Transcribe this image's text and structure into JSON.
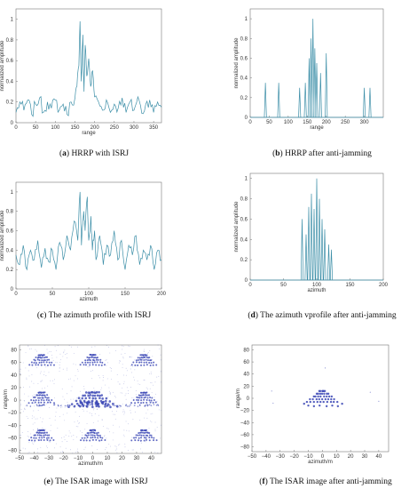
{
  "chart_data": [
    {
      "id": "a",
      "type": "line",
      "caption": {
        "label": "a",
        "text": " HRRP with ISRJ"
      },
      "xlabel": "range",
      "ylabel": "normalized amplitude",
      "xlim": [
        0,
        370
      ],
      "ylim": [
        0,
        1.1
      ],
      "xticks": [
        0,
        50,
        100,
        150,
        200,
        250,
        300,
        350
      ],
      "yticks": [
        0,
        0.2,
        0.4,
        0.6,
        0.8,
        1
      ],
      "color": "#3d8fa8",
      "series": [
        {
          "x": [
            0,
            10,
            20,
            30,
            40,
            50,
            60,
            70,
            80,
            90,
            100,
            110,
            120,
            130,
            140,
            150,
            155,
            160,
            163,
            166,
            170,
            173,
            176,
            180,
            185,
            190,
            195,
            200,
            210,
            220,
            230,
            240,
            250,
            260,
            270,
            280,
            290,
            300,
            310,
            320,
            330,
            340,
            350,
            360,
            370
          ],
          "y": [
            0.1,
            0.2,
            0.12,
            0.22,
            0.08,
            0.18,
            0.24,
            0.1,
            0.2,
            0.14,
            0.22,
            0.12,
            0.18,
            0.08,
            0.2,
            0.24,
            0.35,
            0.55,
            0.98,
            0.4,
            0.85,
            0.3,
            0.75,
            0.45,
            0.62,
            0.35,
            0.5,
            0.25,
            0.2,
            0.12,
            0.22,
            0.1,
            0.18,
            0.14,
            0.24,
            0.1,
            0.2,
            0.12,
            0.25,
            0.09,
            0.18,
            0.22,
            0.1,
            0.2,
            0.15
          ]
        }
      ]
    },
    {
      "id": "b",
      "type": "line",
      "caption": {
        "label": "b",
        "text": " HRRP after anti-jamming"
      },
      "xlabel": "range",
      "ylabel": "normalized amplitude",
      "xlim": [
        0,
        350
      ],
      "ylim": [
        0,
        1.1
      ],
      "xticks": [
        0,
        50,
        100,
        150,
        200,
        250,
        300
      ],
      "yticks": [
        0,
        0.2,
        0.4,
        0.6,
        0.8,
        1
      ],
      "color": "#3d8fa8",
      "spikes": [
        [
          40,
          0.35
        ],
        [
          75,
          0.35
        ],
        [
          130,
          0.3
        ],
        [
          145,
          0.35
        ],
        [
          155,
          0.6
        ],
        [
          160,
          0.8
        ],
        [
          165,
          1.0
        ],
        [
          170,
          0.7
        ],
        [
          175,
          0.55
        ],
        [
          185,
          0.45
        ],
        [
          200,
          0.65
        ],
        [
          300,
          0.3
        ],
        [
          315,
          0.3
        ]
      ]
    },
    {
      "id": "c",
      "type": "line",
      "caption": {
        "label": "c",
        "text": " The azimuth profile with ISRJ"
      },
      "xlabel": "azimuth",
      "ylabel": "normalized amplitude",
      "xlim": [
        0,
        200
      ],
      "ylim": [
        0,
        1.1
      ],
      "xticks": [
        0,
        50,
        100,
        150,
        200
      ],
      "yticks": [
        0,
        0.2,
        0.4,
        0.6,
        0.8,
        1
      ],
      "color": "#3d8fa8",
      "series": [
        {
          "x": [
            0,
            5,
            10,
            15,
            20,
            25,
            30,
            35,
            40,
            45,
            50,
            55,
            60,
            65,
            70,
            75,
            80,
            85,
            88,
            90,
            93,
            95,
            98,
            100,
            103,
            105,
            108,
            110,
            115,
            120,
            125,
            130,
            135,
            140,
            145,
            150,
            155,
            160,
            165,
            170,
            175,
            180,
            185,
            190,
            195,
            200
          ],
          "y": [
            0.35,
            0.25,
            0.45,
            0.2,
            0.4,
            0.3,
            0.5,
            0.22,
            0.42,
            0.28,
            0.4,
            0.2,
            0.48,
            0.3,
            0.55,
            0.4,
            0.7,
            0.5,
            1.0,
            0.45,
            0.8,
            0.6,
            0.95,
            0.5,
            0.75,
            0.4,
            0.6,
            0.3,
            0.55,
            0.25,
            0.45,
            0.35,
            0.6,
            0.3,
            0.5,
            0.2,
            0.45,
            0.35,
            0.55,
            0.25,
            0.4,
            0.3,
            0.45,
            0.2,
            0.4,
            0.3
          ]
        }
      ]
    },
    {
      "id": "d",
      "type": "line",
      "caption": {
        "label": "d",
        "text": " The azimuth vprofile after anti-jamming"
      },
      "xlabel": "azimuth",
      "ylabel": "normalized amplitude",
      "xlim": [
        0,
        200
      ],
      "ylim": [
        0,
        1.05
      ],
      "xticks": [
        0,
        50,
        100,
        150,
        200
      ],
      "yticks": [
        0,
        0.2,
        0.4,
        0.6,
        0.8,
        1
      ],
      "color": "#3d8fa8",
      "spikes": [
        [
          78,
          0.6
        ],
        [
          84,
          0.45
        ],
        [
          88,
          0.72
        ],
        [
          92,
          0.85
        ],
        [
          96,
          0.7
        ],
        [
          100,
          1.0
        ],
        [
          104,
          0.8
        ],
        [
          108,
          0.6
        ],
        [
          112,
          0.5
        ],
        [
          118,
          0.35
        ],
        [
          122,
          0.3
        ]
      ]
    },
    {
      "id": "e",
      "type": "scatter",
      "caption": {
        "label": "e",
        "text": " The ISAR image with ISRJ"
      },
      "xlabel": "azimuth/m",
      "ylabel": "range/m",
      "xlim": [
        -50,
        47
      ],
      "ylim": [
        -85,
        88
      ],
      "xticks": [
        -50,
        -40,
        -30,
        -20,
        -10,
        0,
        10,
        20,
        30,
        40
      ],
      "yticks": [
        -80,
        -60,
        -40,
        -20,
        0,
        20,
        40,
        60,
        80
      ],
      "color": "#3b47b5"
    },
    {
      "id": "f",
      "type": "scatter",
      "caption": {
        "label": "f",
        "text": " The ISAR image after anti-jamming"
      },
      "xlabel": "azimuth/m",
      "ylabel": "range/m",
      "xlim": [
        -50,
        47
      ],
      "ylim": [
        -88,
        88
      ],
      "xticks": [
        -50,
        -40,
        -30,
        -20,
        -10,
        0,
        10,
        20,
        30,
        40
      ],
      "yticks": [
        -80,
        -60,
        -40,
        -20,
        0,
        20,
        40,
        60,
        80
      ],
      "color": "#3b47b5"
    }
  ]
}
